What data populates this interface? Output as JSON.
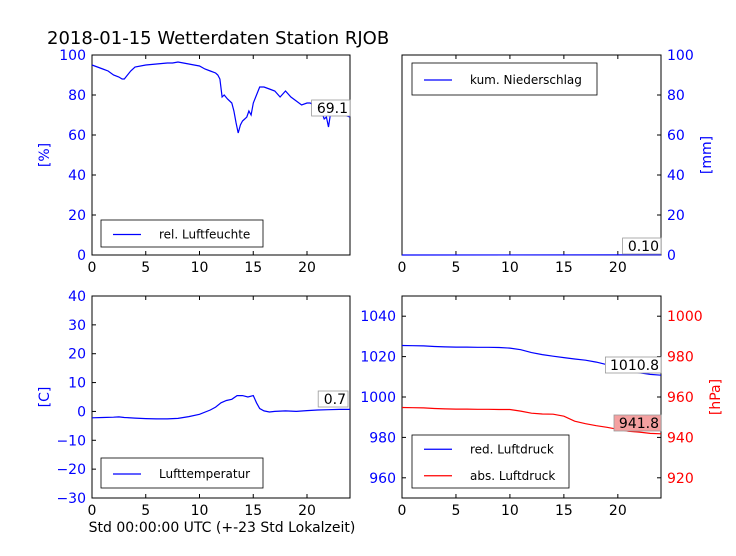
{
  "title": "2018-01-15 Wetterdaten Station RJOB",
  "xlabel": "Std 00:00:00 UTC (+-23 Std Lokalzeit)",
  "colors": {
    "blue": "#0000ff",
    "red": "#ff0000",
    "badge_red": "#f4a0a0"
  },
  "chart_data": [
    {
      "type": "line",
      "panel": "top-left",
      "ylabel": "[%]",
      "xlim": [
        0,
        24
      ],
      "ylim": [
        0,
        100
      ],
      "xticks": [
        "0",
        "5",
        "10",
        "15",
        "20"
      ],
      "yticks": [
        "0",
        "20",
        "40",
        "60",
        "80",
        "100"
      ],
      "legend": {
        "position": "lower-left",
        "entries": [
          "rel. Luftfeuchte"
        ]
      },
      "last_value_label": "69.1",
      "series": [
        {
          "name": "rel. Luftfeuchte",
          "color": "#0000ff",
          "x": [
            0,
            0.5,
            1,
            1.5,
            2,
            2.5,
            2.8,
            3,
            3.3,
            3.6,
            4,
            5,
            6,
            7,
            7.5,
            8,
            8.5,
            9,
            9.5,
            10,
            10.5,
            11,
            11.5,
            11.7,
            11.9,
            12.1,
            12.3,
            12.6,
            13,
            13.2,
            13.4,
            13.6,
            13.8,
            14,
            14.2,
            14.4,
            14.6,
            14.8,
            15,
            15.3,
            15.6,
            16,
            16.5,
            17,
            17.5,
            18,
            18.5,
            19,
            19.5,
            20,
            20.3,
            20.6,
            21,
            21.2,
            21.4,
            21.6,
            21.8,
            22,
            22.2,
            22.4,
            22.6,
            23,
            23.5,
            24
          ],
          "y": [
            95,
            94,
            93,
            92,
            90,
            89,
            88,
            88,
            90,
            92,
            94,
            95,
            95.5,
            96,
            96,
            96.5,
            96,
            95.5,
            95,
            94.5,
            93,
            92,
            91,
            90,
            88,
            79,
            80,
            78,
            76,
            72,
            66,
            61,
            65,
            67,
            68,
            69,
            72,
            70,
            76,
            80,
            84,
            84,
            83,
            82,
            79,
            82,
            79,
            77,
            75,
            76,
            76,
            75,
            75,
            73,
            71,
            68,
            69,
            64,
            71,
            72,
            70,
            70,
            70,
            69
          ]
        }
      ]
    },
    {
      "type": "line",
      "panel": "top-right",
      "ylabel": "[mm]",
      "xlim": [
        0,
        24
      ],
      "ylim": [
        0,
        100
      ],
      "xticks": [
        "0",
        "5",
        "10",
        "15",
        "20"
      ],
      "yticks": [
        "0",
        "20",
        "40",
        "60",
        "80",
        "100"
      ],
      "legend": {
        "position": "upper-left",
        "entries": [
          "kum. Niederschlag"
        ]
      },
      "last_value_label": "0.10",
      "series": [
        {
          "name": "kum. Niederschlag",
          "color": "#0000ff",
          "x": [
            0,
            24
          ],
          "y": [
            0,
            0.1
          ]
        }
      ]
    },
    {
      "type": "line",
      "panel": "bottom-left",
      "ylabel": "[C]",
      "xlim": [
        0,
        24
      ],
      "ylim": [
        -30,
        40
      ],
      "xticks": [
        "0",
        "5",
        "10",
        "15",
        "20"
      ],
      "yticks": [
        "−30",
        "−20",
        "−10",
        "0",
        "10",
        "20",
        "30",
        "40"
      ],
      "legend": {
        "position": "lower-left",
        "entries": [
          "Lufttemperatur"
        ]
      },
      "last_value_label": "0.7",
      "series": [
        {
          "name": "Lufttemperatur",
          "color": "#0000ff",
          "x": [
            0,
            1,
            2,
            2.5,
            3,
            4,
            5,
            6,
            7,
            8,
            9,
            10,
            11,
            11.5,
            12,
            12.5,
            13,
            13.5,
            14,
            14.5,
            15,
            15.3,
            15.6,
            16,
            16.5,
            17,
            18,
            19,
            20,
            21,
            22,
            23,
            24
          ],
          "y": [
            -2.2,
            -2.1,
            -2,
            -1.9,
            -2.1,
            -2.3,
            -2.5,
            -2.6,
            -2.6,
            -2.4,
            -1.8,
            -1,
            0.5,
            1.5,
            3,
            3.8,
            4.2,
            5.5,
            5.5,
            5,
            5.5,
            3,
            1,
            0.2,
            -0.2,
            0,
            0.2,
            0,
            0.3,
            0.5,
            0.6,
            0.7,
            0.7
          ]
        }
      ]
    },
    {
      "type": "line",
      "panel": "bottom-right",
      "ylabel_right": "[hPa]",
      "xlim": [
        0,
        24
      ],
      "ylim_left": [
        950,
        1050
      ],
      "ylim_right": [
        910,
        1010
      ],
      "xticks": [
        "0",
        "5",
        "10",
        "15",
        "20"
      ],
      "yticks_left": [
        "960",
        "980",
        "1000",
        "1020",
        "1040"
      ],
      "yticks_right": [
        "920",
        "940",
        "960",
        "980",
        "1000"
      ],
      "legend": {
        "position": "lower-left",
        "entries": [
          "red. Luftdruck",
          "abs. Luftdruck"
        ]
      },
      "last_value_labels": [
        "1010.8",
        "941.8"
      ],
      "series": [
        {
          "name": "red. Luftdruck",
          "color": "#0000ff",
          "axis": "left",
          "x": [
            0,
            1,
            2,
            3,
            4,
            5,
            6,
            7,
            8,
            9,
            10,
            11,
            12,
            13,
            14,
            15,
            16,
            17,
            18,
            19,
            20,
            21,
            22,
            23,
            24
          ],
          "y": [
            1025.5,
            1025.4,
            1025.3,
            1025,
            1024.8,
            1024.7,
            1024.7,
            1024.6,
            1024.6,
            1024.5,
            1024.2,
            1023.4,
            1022,
            1021,
            1020.2,
            1019.5,
            1018.8,
            1018.2,
            1017.3,
            1016,
            1014.5,
            1013,
            1012,
            1011.2,
            1010.8
          ]
        },
        {
          "name": "abs. Luftdruck",
          "color": "#ff0000",
          "axis": "right",
          "x": [
            0,
            1,
            2,
            3,
            4,
            5,
            6,
            7,
            8,
            9,
            10,
            11,
            12,
            13,
            14,
            15,
            16,
            17,
            18,
            19,
            20,
            21,
            22,
            23,
            24
          ],
          "y": [
            954.8,
            954.7,
            954.6,
            954.3,
            954.1,
            954,
            954,
            953.9,
            953.9,
            953.8,
            953.8,
            953,
            952,
            951.6,
            951.5,
            950.5,
            948,
            946.8,
            945.8,
            945,
            944,
            943,
            942.6,
            942,
            941.8
          ]
        }
      ]
    }
  ]
}
